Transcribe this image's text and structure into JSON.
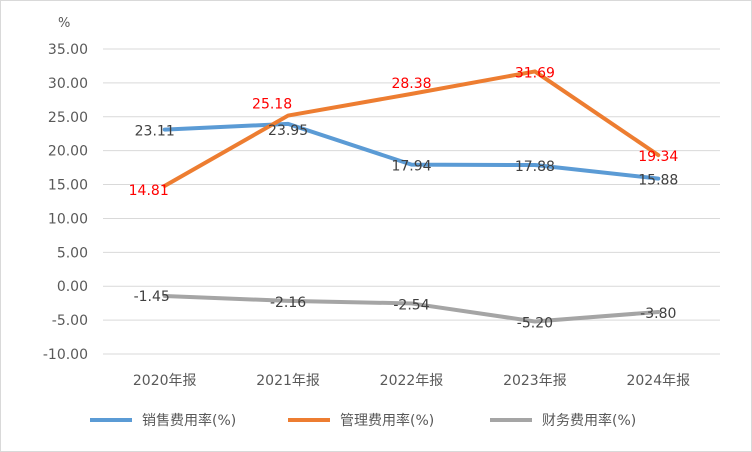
{
  "chart_data": {
    "type": "line",
    "unit_label": "%",
    "categories": [
      "2020年报",
      "2021年报",
      "2022年报",
      "2023年报",
      "2024年报"
    ],
    "ylim": [
      -10,
      35
    ],
    "yticks": [
      "35.00",
      "30.00",
      "25.00",
      "20.00",
      "15.00",
      "10.00",
      "5.00",
      "0.00",
      "-5.00",
      "-10.00"
    ],
    "grid": true,
    "legend_position": "bottom",
    "series": [
      {
        "name": "销售费用率(%)",
        "color": "#5b9bd5",
        "label_color": "#404040",
        "values": [
          23.11,
          23.95,
          17.94,
          17.88,
          15.88
        ],
        "labels": [
          "23.11",
          "23.95",
          "17.94",
          "17.88",
          "15.88"
        ]
      },
      {
        "name": "管理费用率(%)",
        "color": "#ed7d31",
        "label_color": "#ff0000",
        "values": [
          14.81,
          25.18,
          28.38,
          31.69,
          19.34
        ],
        "labels": [
          "14.81",
          "25.18",
          "28.38",
          "31.69",
          "19.34"
        ]
      },
      {
        "name": "财务费用率(%)",
        "color": "#a5a5a5",
        "label_color": "#404040",
        "values": [
          -1.45,
          -2.16,
          -2.54,
          -5.2,
          -3.8
        ],
        "labels": [
          "-1.45",
          "-2.16",
          "-2.54",
          "-5.20",
          "-3.80"
        ]
      }
    ]
  }
}
